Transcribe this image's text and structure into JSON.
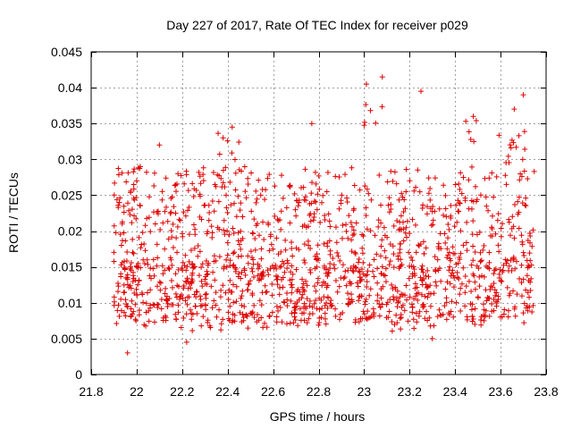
{
  "chart_data": {
    "type": "scatter",
    "title": "Day 227 of 2017, Rate Of TEC Index for receiver p029",
    "xlabel": "GPS time / hours",
    "ylabel": "ROTI / TECUs",
    "xlim": [
      21.8,
      23.8
    ],
    "ylim": [
      0,
      0.045
    ],
    "xticks": [
      21.8,
      22.0,
      22.2,
      22.4,
      22.6,
      22.8,
      23.0,
      23.2,
      23.4,
      23.6,
      23.8
    ],
    "xtick_labels": [
      "21.8",
      "22",
      "22.2",
      "22.4",
      "22.6",
      "22.8",
      "23",
      "23.2",
      "23.4",
      "23.6",
      "23.8"
    ],
    "yticks": [
      0,
      0.005,
      0.01,
      0.015,
      0.02,
      0.025,
      0.03,
      0.035,
      0.04,
      0.045
    ],
    "ytick_labels": [
      "0",
      "0.005",
      "0.01",
      "0.015",
      "0.02",
      "0.025",
      "0.03",
      "0.035",
      "0.04",
      "0.045"
    ],
    "grid": true,
    "marker": "+",
    "marker_color": "#e00000",
    "series": [
      {
        "name": "ROTI",
        "x_range": [
          21.9,
          23.75
        ],
        "point_count": 1500,
        "typical_range": [
          0.007,
          0.025
        ],
        "peaks": [
          {
            "x": 21.96,
            "y": 0.003
          },
          {
            "x": 22.0,
            "y": 0.027
          },
          {
            "x": 22.1,
            "y": 0.032
          },
          {
            "x": 22.22,
            "y": 0.0045
          },
          {
            "x": 22.38,
            "y": 0.033
          },
          {
            "x": 22.42,
            "y": 0.0345
          },
          {
            "x": 22.77,
            "y": 0.035
          },
          {
            "x": 23.01,
            "y": 0.0405
          },
          {
            "x": 23.08,
            "y": 0.0415
          },
          {
            "x": 23.25,
            "y": 0.0395
          },
          {
            "x": 23.3,
            "y": 0.005
          },
          {
            "x": 23.48,
            "y": 0.036
          },
          {
            "x": 23.66,
            "y": 0.037
          },
          {
            "x": 23.7,
            "y": 0.039
          }
        ]
      }
    ]
  }
}
